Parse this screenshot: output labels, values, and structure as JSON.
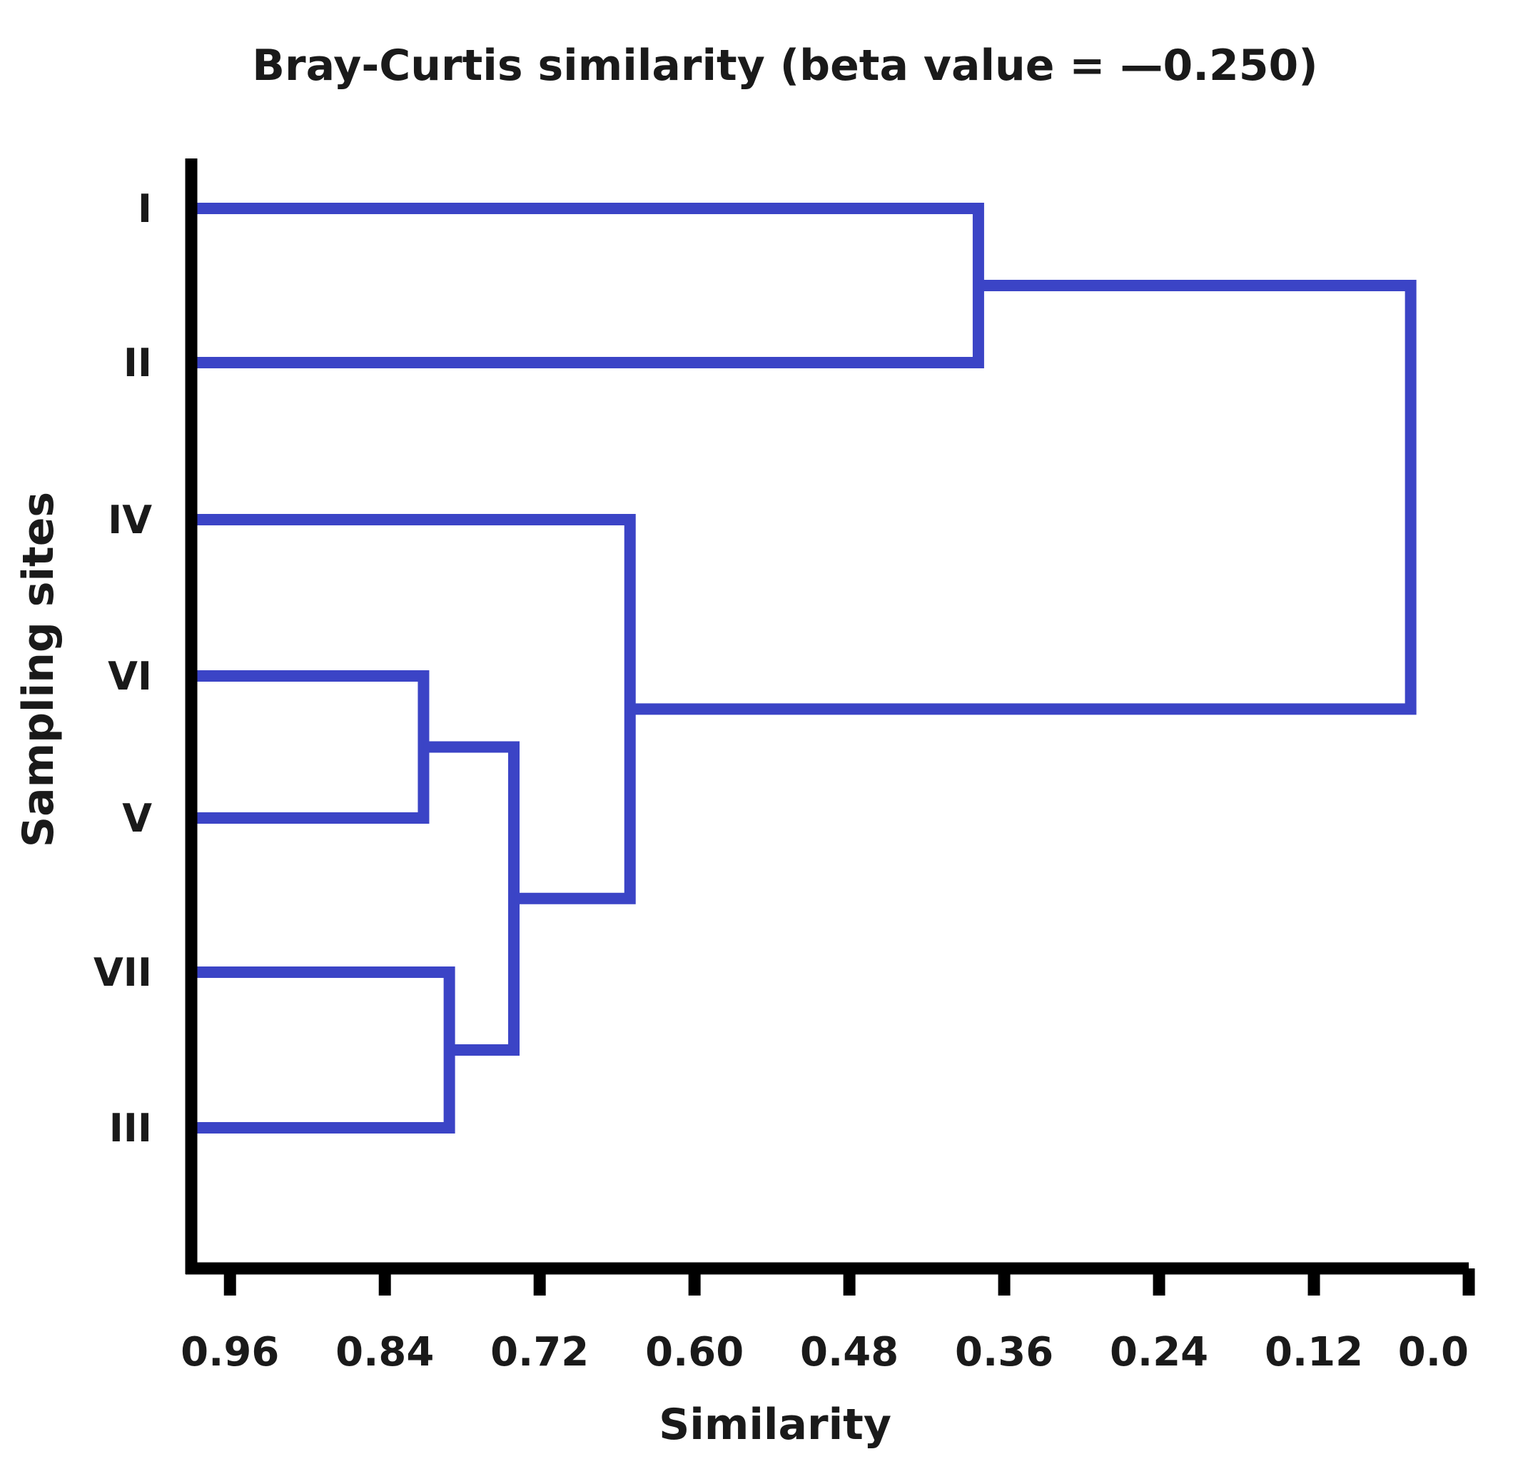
{
  "chart_data": {
    "type": "dendrogram",
    "title": "Bray-Curtis similarity (beta value = —0.250)",
    "xlabel": "Similarity",
    "ylabel": "Sampling sites",
    "xlim": [
      0.99,
      0.0
    ],
    "x_ticks": [
      0.96,
      0.84,
      0.72,
      0.6,
      0.48,
      0.36,
      0.24,
      0.12,
      0.0
    ],
    "x_tick_labels": [
      "0.96",
      "0.84",
      "0.72",
      "0.60",
      "0.48",
      "0.36",
      "0.24",
      "0.12",
      "0.0"
    ],
    "leaves": [
      "I",
      "II",
      "IV",
      "VI",
      "V",
      "VII",
      "III"
    ],
    "merges": [
      {
        "id": "c1",
        "left": "VI",
        "right": "V",
        "similarity": 0.81
      },
      {
        "id": "c2",
        "left": "VII",
        "right": "III",
        "similarity": 0.79
      },
      {
        "id": "c3",
        "left": "c1",
        "right": "c2",
        "similarity": 0.74
      },
      {
        "id": "c4",
        "left": "IV",
        "right": "c3",
        "similarity": 0.65
      },
      {
        "id": "c5",
        "left": "I",
        "right": "II",
        "similarity": 0.38
      },
      {
        "id": "c6",
        "left": "c5",
        "right": "c4",
        "similarity": 0.045
      }
    ],
    "line_color": "#3b44c6",
    "axis_color": "#000000"
  }
}
